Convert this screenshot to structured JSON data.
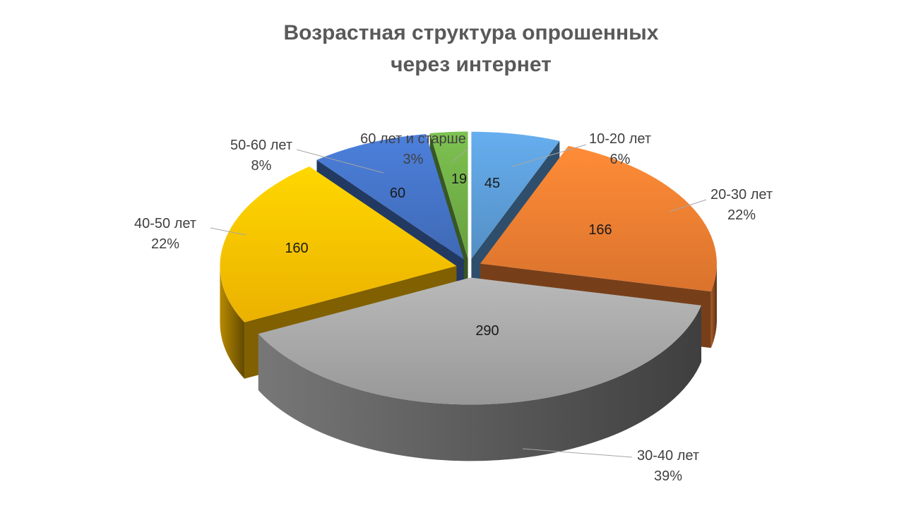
{
  "chart_data": {
    "type": "pie",
    "title_lines": [
      "Возрастная структура опрошенных",
      "через интернет"
    ],
    "slices": [
      {
        "category": "10-20 лет",
        "value": 45,
        "percent": "6%",
        "color": "#5b9bd5"
      },
      {
        "category": "20-30 лет",
        "value": 166,
        "percent": "22%",
        "color": "#ed7d31"
      },
      {
        "category": "30-40 лет",
        "value": 290,
        "percent": "39%",
        "color": "#a5a5a5"
      },
      {
        "category": "40-50 лет",
        "value": 160,
        "percent": "22%",
        "color": "#ffc000"
      },
      {
        "category": "50-60 лет",
        "value": 60,
        "percent": "8%",
        "color": "#4472c4"
      },
      {
        "category": "60 лет и старше",
        "value": 19,
        "percent": "3%",
        "color": "#70ad47"
      }
    ],
    "legend": "none"
  }
}
